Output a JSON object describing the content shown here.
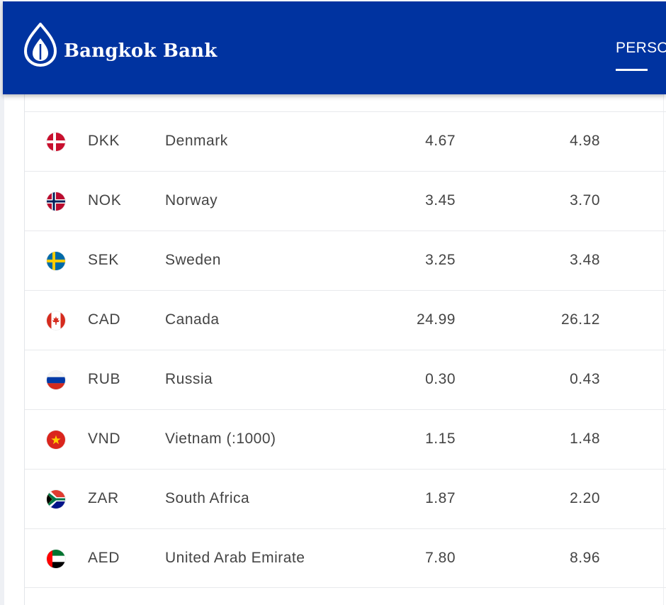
{
  "header": {
    "brand": "Bangkok Bank",
    "nav": [
      {
        "label": "PERSO"
      }
    ],
    "colors": {
      "primary": "#0033a0",
      "text": "#ffffff"
    }
  },
  "rates": {
    "rows": [
      {
        "code": "DKK",
        "country": "Denmark",
        "buy": "4.67",
        "sell": "4.98",
        "flag": "denmark-flag-icon"
      },
      {
        "code": "NOK",
        "country": "Norway",
        "buy": "3.45",
        "sell": "3.70",
        "flag": "norway-flag-icon"
      },
      {
        "code": "SEK",
        "country": "Sweden",
        "buy": "3.25",
        "sell": "3.48",
        "flag": "sweden-flag-icon"
      },
      {
        "code": "CAD",
        "country": "Canada",
        "buy": "24.99",
        "sell": "26.12",
        "flag": "canada-flag-icon"
      },
      {
        "code": "RUB",
        "country": "Russia",
        "buy": "0.30",
        "sell": "0.43",
        "flag": "russia-flag-icon"
      },
      {
        "code": "VND",
        "country": "Vietnam (:1000)",
        "buy": "1.15",
        "sell": "1.48",
        "flag": "vietnam-flag-icon"
      },
      {
        "code": "ZAR",
        "country": "South Africa",
        "buy": "1.87",
        "sell": "2.20",
        "flag": "south-africa-flag-icon"
      },
      {
        "code": "AED",
        "country": "United Arab Emirate",
        "buy": "7.80",
        "sell": "8.96",
        "flag": "uae-flag-icon"
      }
    ]
  }
}
